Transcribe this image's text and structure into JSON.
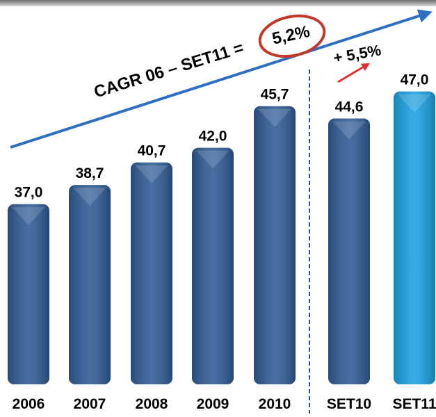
{
  "chart_data": {
    "type": "bar",
    "categories": [
      "2006",
      "2007",
      "2008",
      "2009",
      "2010",
      "SET10",
      "SET11"
    ],
    "values": [
      37.0,
      38.7,
      40.7,
      42.0,
      45.7,
      44.6,
      47.0
    ],
    "value_labels": [
      "37,0",
      "38,7",
      "40,7",
      "42,0",
      "45,7",
      "44,6",
      "47,0"
    ],
    "colors": [
      "#2f5b95",
      "#2f5b95",
      "#2f5b95",
      "#2f5b95",
      "#2f5b95",
      "#2f5b95",
      "#1ba1e2"
    ],
    "ylim": [
      21,
      50
    ],
    "annotations": [
      "CAGR 06 – SET11 =",
      "5,2%",
      "+ 5,5%"
    ]
  }
}
